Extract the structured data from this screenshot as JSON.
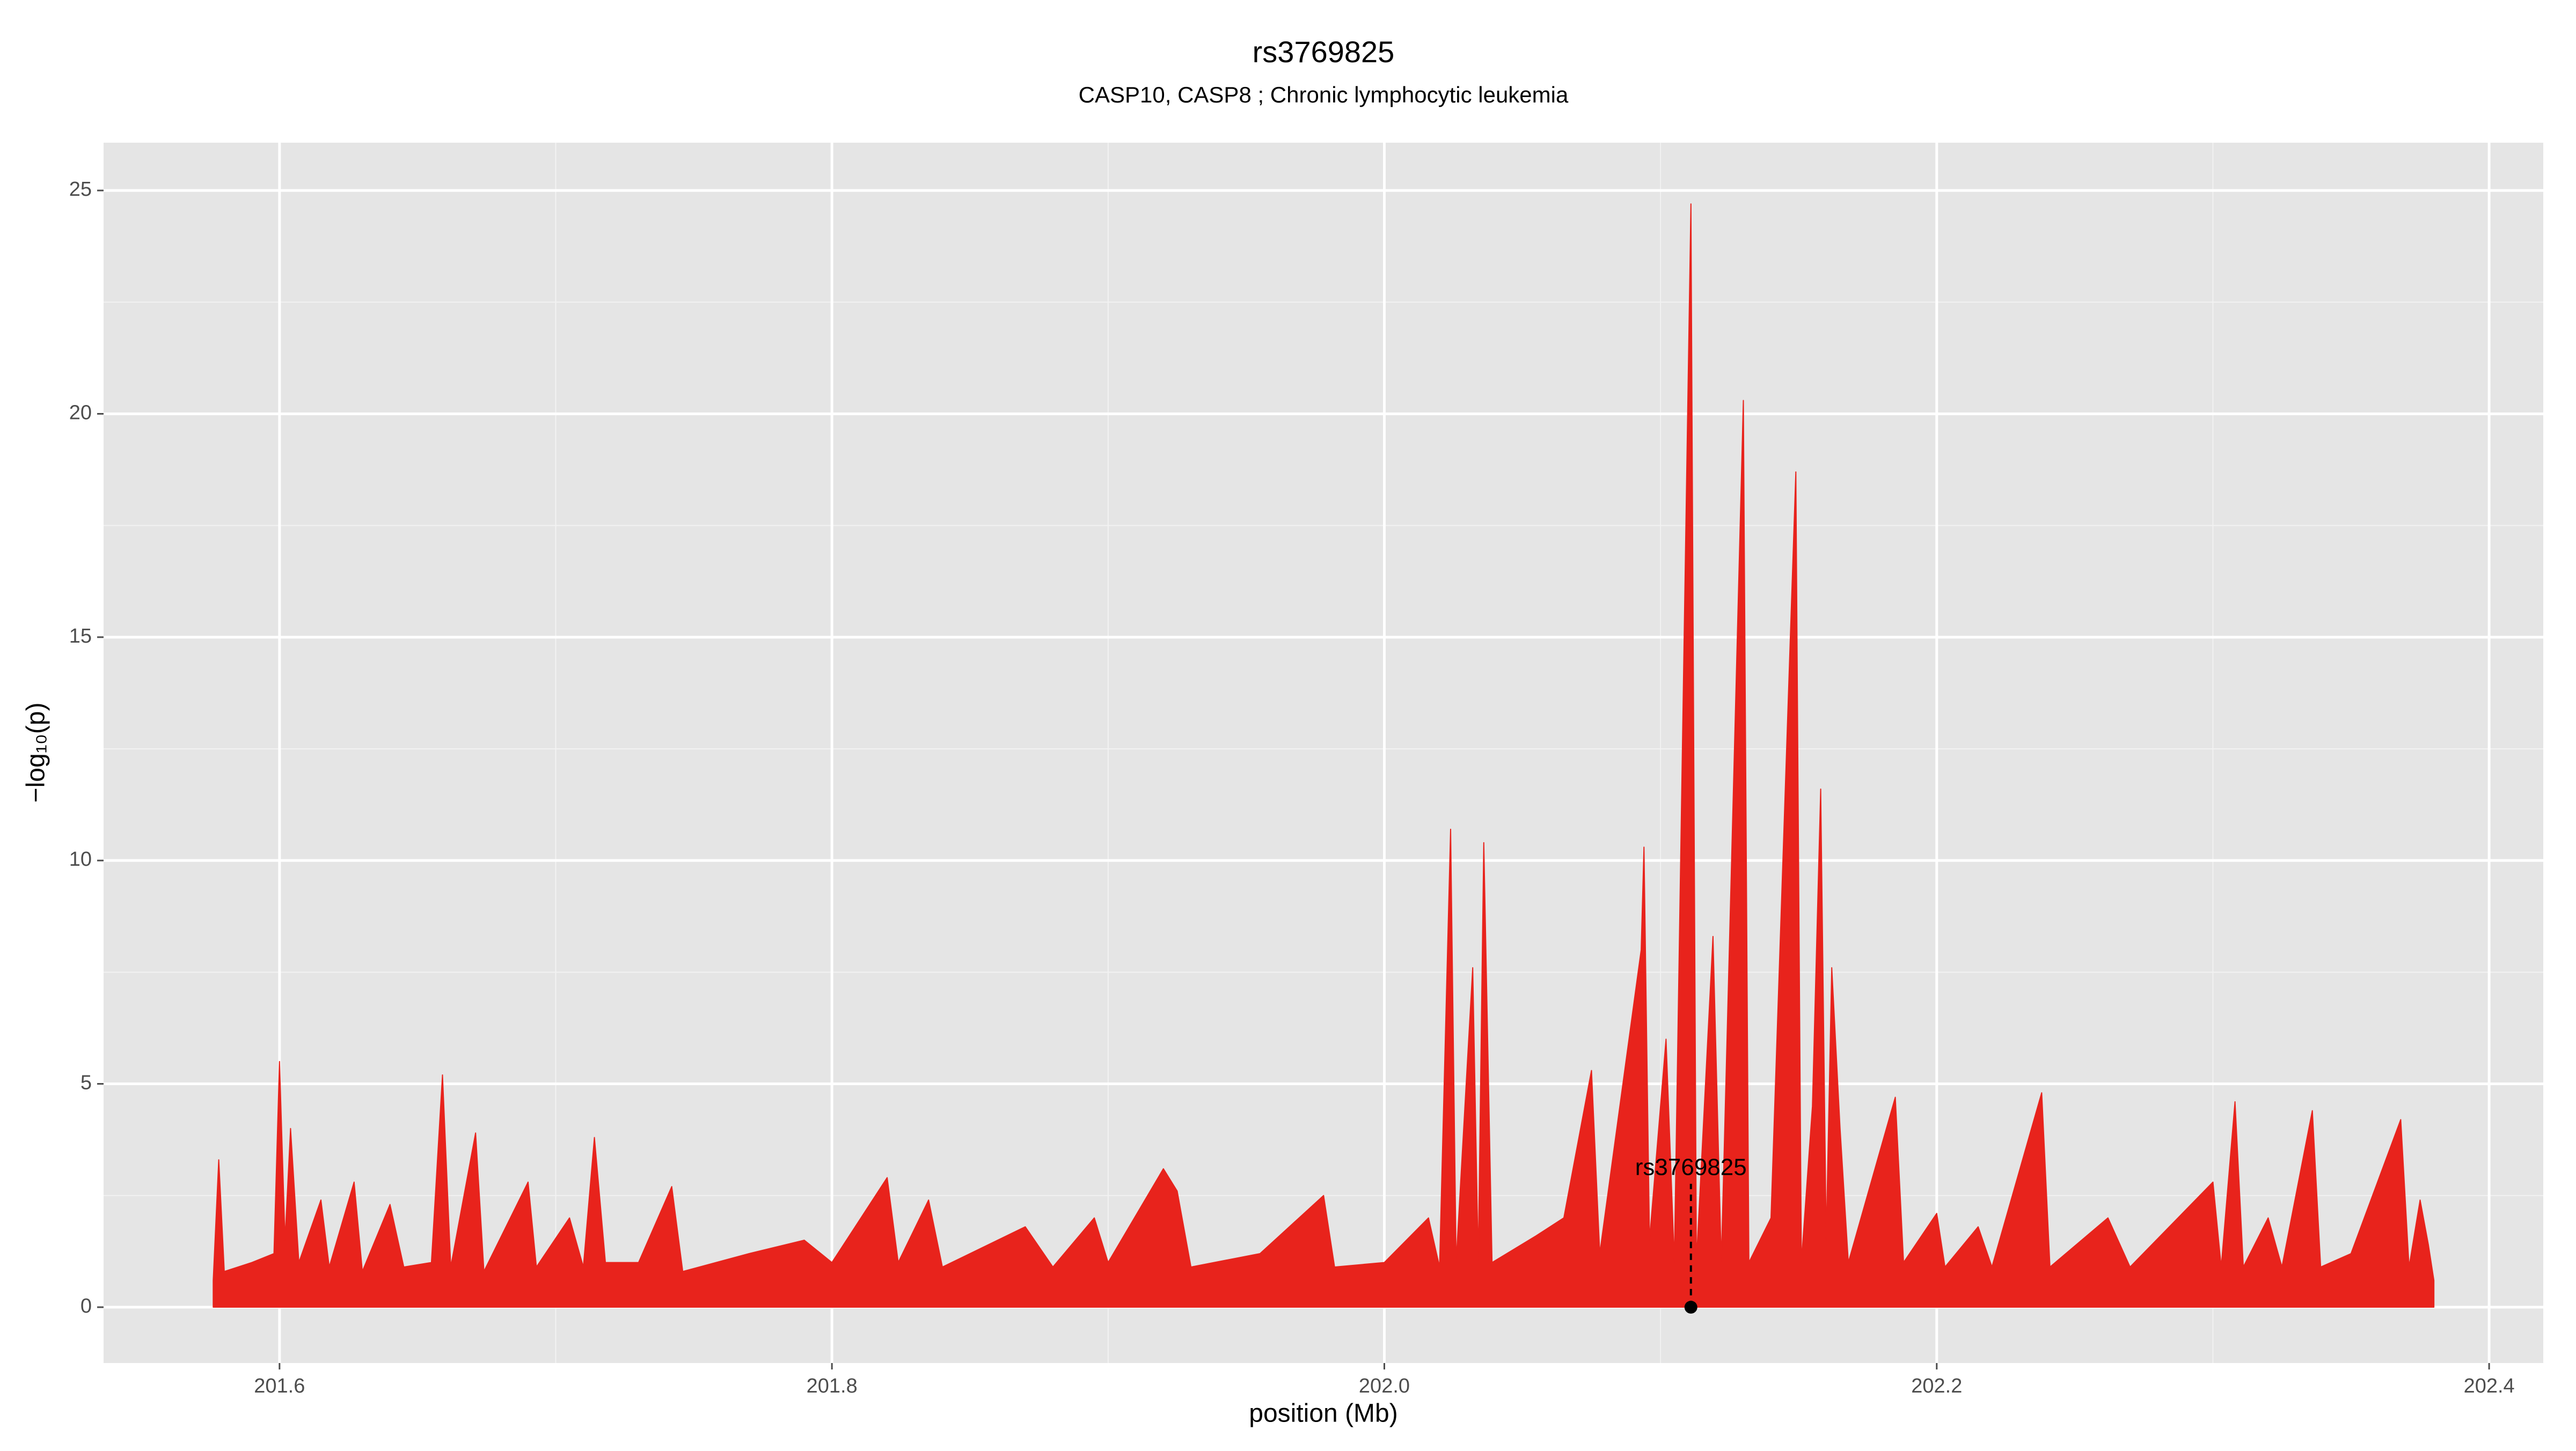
{
  "chart_data": {
    "type": "area",
    "title": "rs3769825",
    "subtitle": "CASP10, CASP8 ; Chronic lymphocytic leukemia",
    "xlabel": "position (Mb)",
    "ylabel": "−log₁₀(p)",
    "xlim": [
      201.5363,
      202.4196
    ],
    "ylim": [
      -1.25,
      26.07
    ],
    "xticks": [
      201.6,
      201.8,
      {
        "value": 202.0,
        "label": "202.0"
      },
      202.2,
      202.4
    ],
    "yticks": [
      0,
      5,
      10,
      15,
      20,
      25
    ],
    "xminor": [
      201.7,
      201.9,
      202.1,
      202.3
    ],
    "yminor": [
      2.5,
      7.5,
      12.5,
      17.5,
      22.5
    ],
    "grid": true,
    "color": "#e8231c",
    "x": [
      201.576,
      201.578,
      201.58,
      201.59,
      201.598,
      201.6,
      201.602,
      201.604,
      201.607,
      201.615,
      201.618,
      201.627,
      201.63,
      201.64,
      201.645,
      201.655,
      201.659,
      201.662,
      201.671,
      201.674,
      201.69,
      201.693,
      201.705,
      201.71,
      201.714,
      201.718,
      201.73,
      201.742,
      201.746,
      201.77,
      201.79,
      201.8,
      201.82,
      201.824,
      201.835,
      201.84,
      201.87,
      201.88,
      201.895,
      201.9,
      201.92,
      201.925,
      201.93,
      201.955,
      201.978,
      201.982,
      202.0,
      202.016,
      202.02,
      202.024,
      202.026,
      202.032,
      202.034,
      202.036,
      202.039,
      202.055,
      202.065,
      202.075,
      202.078,
      202.093,
      202.094,
      202.096,
      202.102,
      202.105,
      202.111,
      202.113,
      202.119,
      202.122,
      202.13,
      202.132,
      202.14,
      202.149,
      202.151,
      202.155,
      202.158,
      202.16,
      202.162,
      202.165,
      202.168,
      202.185,
      202.188,
      202.2,
      202.203,
      202.215,
      202.22,
      202.238,
      202.241,
      202.262,
      202.27,
      202.3,
      202.303,
      202.308,
      202.311,
      202.32,
      202.325,
      202.336,
      202.339,
      202.35,
      202.368,
      202.371,
      202.375,
      202.378,
      202.38
    ],
    "values": [
      0.6,
      3.3,
      0.8,
      1.0,
      1.2,
      5.5,
      1.5,
      4.0,
      1.0,
      2.4,
      0.9,
      2.8,
      0.8,
      2.3,
      0.9,
      1.0,
      5.2,
      0.9,
      3.9,
      0.8,
      2.8,
      0.9,
      2.0,
      0.9,
      3.8,
      1.0,
      1.0,
      2.7,
      0.8,
      1.2,
      1.5,
      1.0,
      2.9,
      1.0,
      2.4,
      0.9,
      1.8,
      0.9,
      2.0,
      1.0,
      3.1,
      2.6,
      0.9,
      1.2,
      2.5,
      0.9,
      1.0,
      2.0,
      0.9,
      10.7,
      1.0,
      7.6,
      1.0,
      10.4,
      1.0,
      1.6,
      2.0,
      5.3,
      1.2,
      8.0,
      10.3,
      1.5,
      6.0,
      1.0,
      24.7,
      1.0,
      8.3,
      1.0,
      20.3,
      1.0,
      2.0,
      18.7,
      1.0,
      4.5,
      11.6,
      1.5,
      7.6,
      4.0,
      1.0,
      4.7,
      1.0,
      2.1,
      0.9,
      1.8,
      0.9,
      4.8,
      0.9,
      2.0,
      0.9,
      2.8,
      0.9,
      4.6,
      0.9,
      2.0,
      0.9,
      4.4,
      0.9,
      1.2,
      4.2,
      0.9,
      2.4,
      1.4,
      0.6
    ],
    "annotation": {
      "text": "rs3769825",
      "x": 202.111,
      "y": 0
    }
  }
}
